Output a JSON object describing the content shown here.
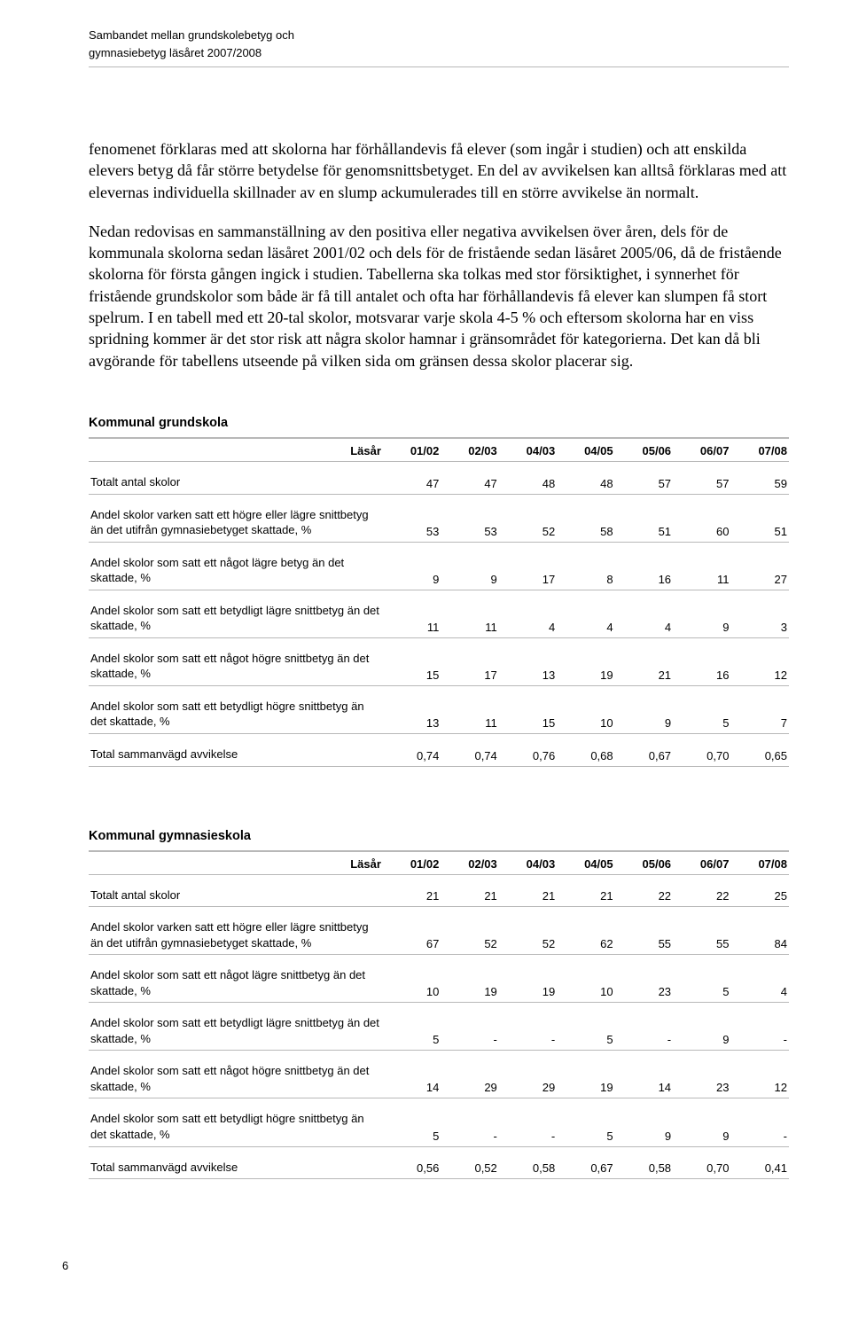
{
  "header": {
    "line1": "Sambandet mellan grundskolebetyg och",
    "line2": "gymnasiebetyg läsåret 2007/2008"
  },
  "paragraphs": {
    "p1": "fenomenet förklaras med att skolorna har förhållandevis få elever (som ingår i studien) och att enskilda elevers betyg då får större betydelse för genomsnittsbetyget. En del av avvikelsen kan alltså förklaras med att elevernas individuella skillnader av en slump ackumulerades till en större avvikelse än normalt.",
    "p2": "Nedan redovisas en sammanställning av den positiva eller negativa avvikelsen över åren, dels för de kommunala skolorna sedan läsåret 2001/02 och dels för de fristående sedan läsåret 2005/06, då de fristående skolorna för första gången ingick i studien. Tabellerna ska tolkas med stor försiktighet, i synnerhet för fristående grundskolor som både är få till antalet och ofta har förhållandevis få elever kan slumpen få stort spelrum. I en tabell med ett 20-tal skolor, motsvarar varje skola 4-5 % och eftersom skolorna har en viss spridning kommer är det stor risk att några skolor hamnar i gränsområdet för kategorierna. Det kan då bli avgörande för tabellens utseende på vilken sida om gränsen dessa skolor placerar sig."
  },
  "table1": {
    "title": "Kommunal grundskola",
    "header_label": "Läsår",
    "columns": [
      "01/02",
      "02/03",
      "04/03",
      "04/05",
      "05/06",
      "06/07",
      "07/08"
    ],
    "rows": [
      {
        "label": "Totalt antal skolor",
        "values": [
          "47",
          "47",
          "48",
          "48",
          "57",
          "57",
          "59"
        ]
      },
      {
        "label": "Andel skolor varken satt ett högre eller lägre snittbetyg än det utifrån gymnasiebetyget skattade, %",
        "values": [
          "53",
          "53",
          "52",
          "58",
          "51",
          "60",
          "51"
        ]
      },
      {
        "label": "Andel skolor som satt ett något lägre betyg än det skattade, %",
        "values": [
          "9",
          "9",
          "17",
          "8",
          "16",
          "11",
          "27"
        ]
      },
      {
        "label": "Andel skolor som satt ett betydligt lägre snittbetyg än det skattade, %",
        "values": [
          "11",
          "11",
          "4",
          "4",
          "4",
          "9",
          "3"
        ]
      },
      {
        "label": "Andel skolor som satt ett något högre snittbetyg än det skattade, %",
        "values": [
          "15",
          "17",
          "13",
          "19",
          "21",
          "16",
          "12"
        ]
      },
      {
        "label": "Andel skolor som satt ett betydligt högre snittbetyg än det skattade, %",
        "values": [
          "13",
          "11",
          "15",
          "10",
          "9",
          "5",
          "7"
        ]
      },
      {
        "label": "Total sammanvägd avvikelse",
        "values": [
          "0,74",
          "0,74",
          "0,76",
          "0,68",
          "0,67",
          "0,70",
          "0,65"
        ]
      }
    ]
  },
  "table2": {
    "title": "Kommunal gymnasieskola",
    "header_label": "Läsår",
    "columns": [
      "01/02",
      "02/03",
      "04/03",
      "04/05",
      "05/06",
      "06/07",
      "07/08"
    ],
    "rows": [
      {
        "label": "Totalt antal skolor",
        "values": [
          "21",
          "21",
          "21",
          "21",
          "22",
          "22",
          "25"
        ]
      },
      {
        "label": "Andel skolor varken satt ett högre eller lägre snittbetyg än det utifrån gymnasiebetyget skattade, %",
        "values": [
          "67",
          "52",
          "52",
          "62",
          "55",
          "55",
          "84"
        ]
      },
      {
        "label": "Andel skolor som satt ett något lägre snittbetyg än det skattade, %",
        "values": [
          "10",
          "19",
          "19",
          "10",
          "23",
          "5",
          "4"
        ]
      },
      {
        "label": "Andel skolor som satt ett betydligt lägre snittbetyg än det skattade, %",
        "values": [
          "5",
          "-",
          "-",
          "5",
          "-",
          "9",
          "-"
        ]
      },
      {
        "label": "Andel skolor som satt ett något högre snittbetyg än det skattade, %",
        "values": [
          "14",
          "29",
          "29",
          "19",
          "14",
          "23",
          "12"
        ]
      },
      {
        "label": "Andel skolor som satt ett betydligt högre snittbetyg än det skattade, %",
        "values": [
          "5",
          "-",
          "-",
          "5",
          "9",
          "9",
          "-"
        ]
      },
      {
        "label": "Total sammanvägd avvikelse",
        "values": [
          "0,56",
          "0,52",
          "0,58",
          "0,67",
          "0,58",
          "0,70",
          "0,41"
        ]
      }
    ]
  },
  "page_number": "6"
}
